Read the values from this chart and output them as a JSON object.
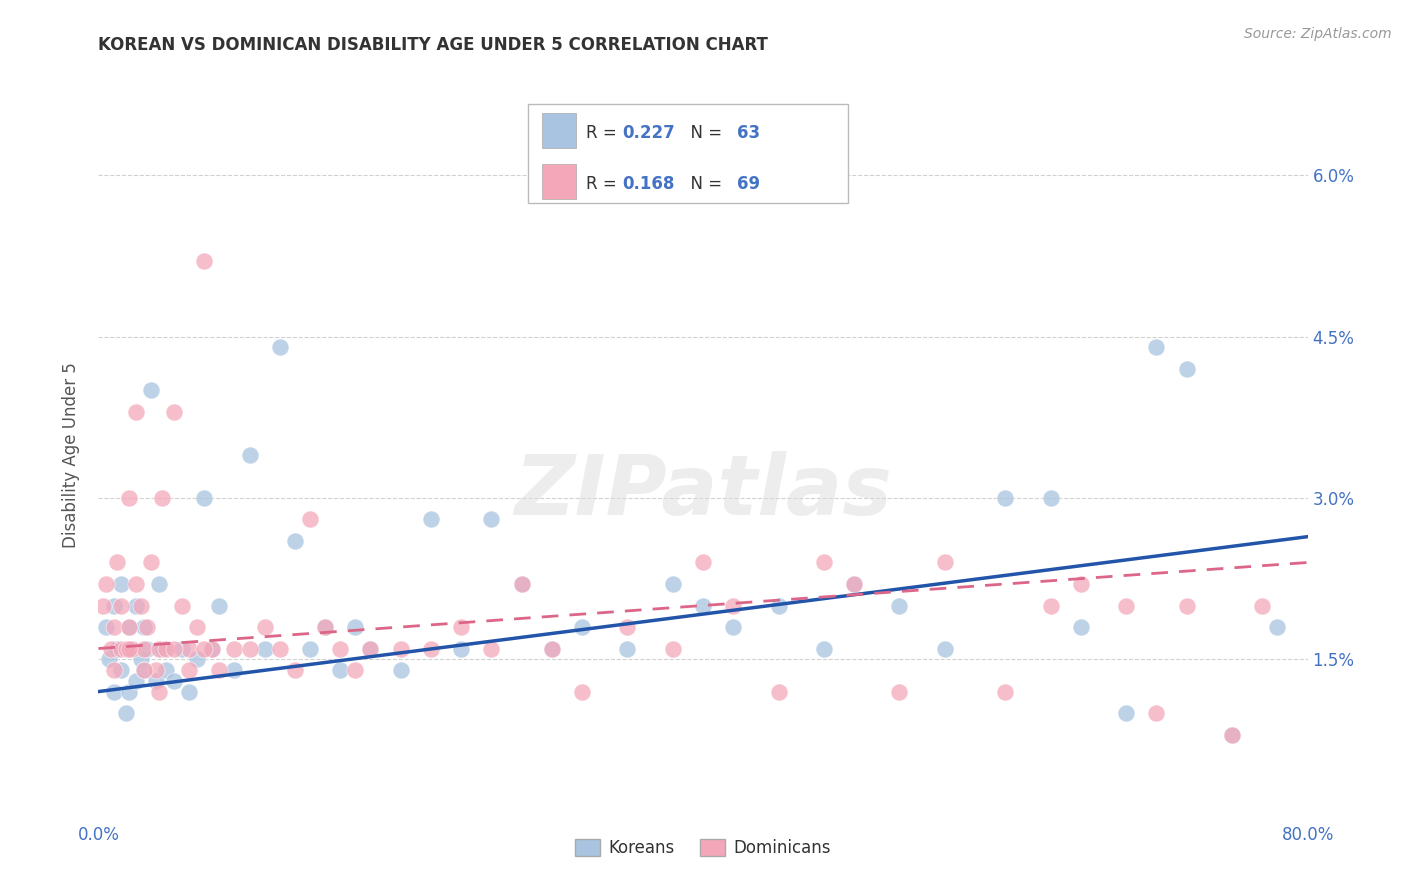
{
  "title": "KOREAN VS DOMINICAN DISABILITY AGE UNDER 5 CORRELATION CHART",
  "source": "Source: ZipAtlas.com",
  "ylabel": "Disability Age Under 5",
  "yticks": [
    "1.5%",
    "3.0%",
    "4.5%",
    "6.0%"
  ],
  "ytick_vals": [
    0.015,
    0.03,
    0.045,
    0.06
  ],
  "R_korean": 0.227,
  "N_korean": 63,
  "R_dominican": 0.168,
  "N_dominican": 69,
  "korean_color": "#A8C4E0",
  "dominican_color": "#F4A7B9",
  "korean_line_color": "#2255AA",
  "dominican_line_color": "#DD6688",
  "background_color": "#FFFFFF",
  "grid_color": "#CCCCCC",
  "axis_label_color": "#4472C4",
  "watermark": "ZIPatlas",
  "xmin": 0.0,
  "xmax": 0.8,
  "ymin": 0.0,
  "ymax": 0.068,
  "kor_intercept": 0.012,
  "kor_slope": 0.018,
  "dom_intercept": 0.016,
  "dom_slope": 0.01
}
